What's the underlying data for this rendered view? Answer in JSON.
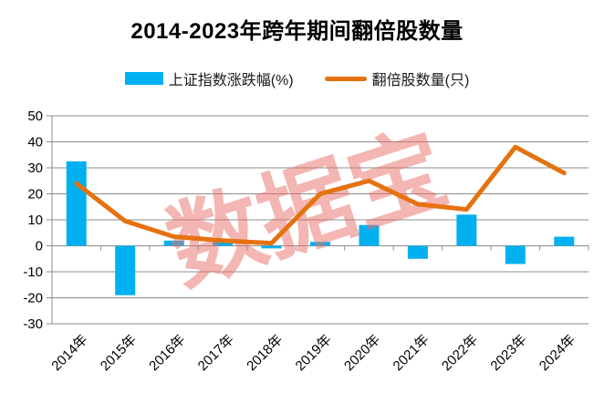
{
  "chart_data": {
    "type": "bar",
    "subtype": "bar-line-combo",
    "title": "2014-2023年跨年期间翻倍股数量",
    "categories": [
      "2014年",
      "2015年",
      "2016年",
      "2017年",
      "2018年",
      "2019年",
      "2020年",
      "2021年",
      "2022年",
      "2023年",
      "2024年"
    ],
    "series": [
      {
        "name": "上证指数涨跌幅(%)",
        "type": "bar",
        "color": "#00B0F0",
        "values": [
          32.5,
          -19,
          2,
          2.5,
          -1,
          1.5,
          8,
          -5,
          12,
          -7,
          3.5
        ]
      },
      {
        "name": "翻倍股数量(只)",
        "type": "line",
        "color": "#E5720F",
        "values": [
          24,
          9.5,
          3.5,
          2,
          1,
          20,
          25,
          16,
          14,
          38,
          28
        ]
      }
    ],
    "ylim": [
      -30,
      50
    ],
    "ytick_step": 10,
    "ytick_labels": [
      "50",
      "40",
      "30",
      "20",
      "10",
      "0",
      "-10",
      "-20",
      "-30"
    ],
    "grid": true,
    "legend_position": "top",
    "watermark": "数据宝",
    "colors": {
      "bar": "#00B0F0",
      "line": "#E5720F",
      "grid": "#8C8C8C",
      "axis_text": "#000000",
      "watermark": "#E9706A",
      "title": "#000000"
    }
  }
}
